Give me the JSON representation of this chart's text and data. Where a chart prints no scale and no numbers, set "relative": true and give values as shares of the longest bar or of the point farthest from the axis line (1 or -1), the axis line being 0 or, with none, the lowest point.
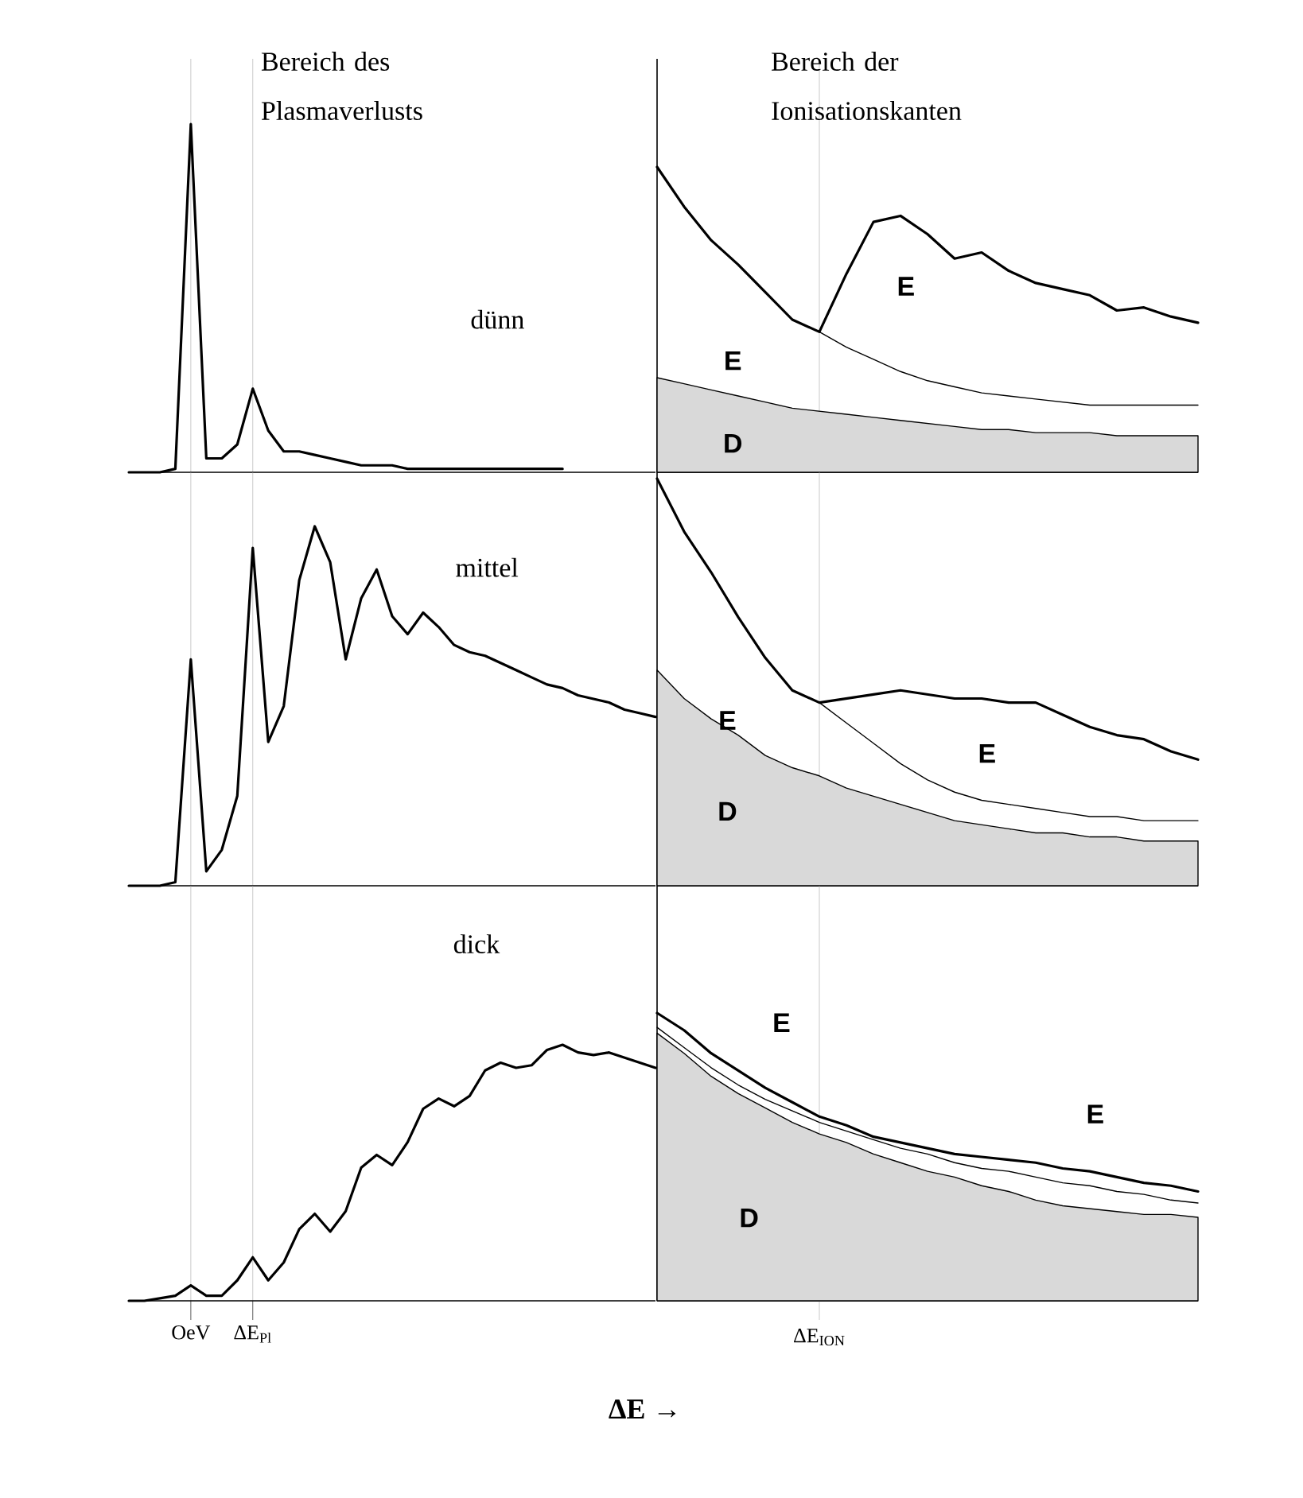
{
  "chart_data": [
    {
      "type": "line",
      "title": "Bereich des Plasmaverlusts",
      "relative": true,
      "grid": "x",
      "annotations": [
        "dünn"
      ],
      "categories": [
        null,
        null,
        null,
        null,
        null,
        null,
        null,
        null,
        null,
        null,
        null,
        null,
        null,
        null,
        null,
        null,
        null,
        null,
        null,
        null,
        null,
        null,
        null,
        null,
        null,
        null,
        null,
        null,
        null,
        null,
        null,
        null,
        null,
        null,
        null
      ],
      "series": [
        {
          "color": "#000000",
          "values": [
            0,
            0,
            0,
            0.01,
            1,
            0.04,
            0.04,
            0.08,
            0.24,
            0.12,
            0.06,
            0.06,
            0.05,
            0.04,
            0.03,
            0.02,
            0.02,
            0.02,
            0.01,
            0.01,
            0.01,
            0.01,
            0.01,
            0.01,
            0.01,
            0.01,
            0.01,
            0.01,
            0.01,
            null,
            null,
            null,
            null,
            null,
            null
          ]
        }
      ]
    },
    {
      "type": "line",
      "title": "Bereich der Ionisationskanten",
      "relative": true,
      "grid": "x",
      "annotations": [
        "E",
        "E",
        "D"
      ],
      "categories": [
        null,
        null,
        null,
        null,
        null,
        null,
        null,
        null,
        null,
        null,
        null,
        null,
        null,
        null,
        null,
        null,
        null,
        null,
        null,
        null,
        null
      ],
      "series": [
        {
          "type": "area",
          "color": "#d9d9d9",
          "values": [
            0.31,
            0.29,
            0.27,
            0.25,
            0.23,
            0.21,
            0.2,
            0.19,
            0.18,
            0.17,
            0.16,
            0.15,
            0.14,
            0.14,
            0.13,
            0.13,
            0.13,
            0.12,
            0.12,
            0.12,
            0.12
          ]
        },
        {
          "color": "#000000",
          "values": [
            1,
            0.87,
            0.76,
            0.68,
            0.59,
            0.5,
            0.46,
            0.41,
            0.37,
            0.33,
            0.3,
            0.28,
            0.26,
            0.25,
            0.24,
            0.23,
            0.22,
            0.22,
            0.22,
            0.22,
            0.22
          ]
        },
        {
          "color": "#000000",
          "values": [
            1,
            0.87,
            0.76,
            0.68,
            0.59,
            0.5,
            0.46,
            0.65,
            0.82,
            0.84,
            0.78,
            0.7,
            0.72,
            0.66,
            0.62,
            0.6,
            0.58,
            0.53,
            0.54,
            0.51,
            0.49
          ]
        }
      ]
    },
    {
      "type": "line",
      "relative": true,
      "grid": "x",
      "annotations": [
        "mittel"
      ],
      "categories": [
        null,
        null,
        null,
        null,
        null,
        null,
        null,
        null,
        null,
        null,
        null,
        null,
        null,
        null,
        null,
        null,
        null,
        null,
        null,
        null,
        null,
        null,
        null,
        null,
        null,
        null,
        null,
        null,
        null,
        null,
        null,
        null,
        null,
        null,
        null
      ],
      "series": [
        {
          "color": "#000000",
          "values": [
            0,
            0,
            0,
            0.01,
            0.63,
            0.04,
            0.1,
            0.25,
            0.94,
            0.4,
            0.5,
            0.85,
            1,
            0.9,
            0.63,
            0.8,
            0.88,
            0.75,
            0.7,
            0.76,
            0.72,
            0.67,
            0.65,
            0.64,
            0.62,
            0.6,
            0.58,
            0.56,
            0.55,
            0.53,
            0.52,
            0.51,
            0.49,
            0.48,
            0.47
          ]
        }
      ]
    },
    {
      "type": "line",
      "relative": true,
      "grid": "x",
      "annotations": [
        "E",
        "E",
        "D"
      ],
      "categories": [
        null,
        null,
        null,
        null,
        null,
        null,
        null,
        null,
        null,
        null,
        null,
        null,
        null,
        null,
        null,
        null,
        null,
        null,
        null,
        null,
        null
      ],
      "series": [
        {
          "type": "area",
          "color": "#d9d9d9",
          "values": [
            0.53,
            0.46,
            0.41,
            0.37,
            0.32,
            0.29,
            0.27,
            0.24,
            0.22,
            0.2,
            0.18,
            0.16,
            0.15,
            0.14,
            0.13,
            0.13,
            0.12,
            0.12,
            0.11,
            0.11,
            0.11
          ]
        },
        {
          "color": "#000000",
          "values": [
            1,
            0.87,
            0.77,
            0.66,
            0.56,
            0.48,
            0.45,
            0.4,
            0.35,
            0.3,
            0.26,
            0.23,
            0.21,
            0.2,
            0.19,
            0.18,
            0.17,
            0.17,
            0.16,
            0.16,
            0.16
          ]
        },
        {
          "color": "#000000",
          "values": [
            1,
            0.87,
            0.77,
            0.66,
            0.56,
            0.48,
            0.45,
            0.46,
            0.47,
            0.48,
            0.47,
            0.46,
            0.46,
            0.45,
            0.45,
            0.42,
            0.39,
            0.37,
            0.36,
            0.33,
            0.31
          ]
        }
      ]
    },
    {
      "type": "line",
      "relative": true,
      "grid": "x",
      "tick_labels": "x",
      "xlabel": "ΔE →",
      "annotations": [
        "dick"
      ],
      "categories": [
        null,
        null,
        null,
        null,
        "OeV",
        null,
        null,
        null,
        "ΔE$_{Pl}$",
        null,
        null,
        null,
        null,
        null,
        null,
        null,
        null,
        null,
        null,
        null,
        null,
        null,
        null,
        null,
        null,
        null,
        null,
        null,
        null,
        null,
        null,
        null,
        null,
        null,
        null
      ],
      "series": [
        {
          "color": "#000000",
          "values": [
            0,
            0,
            0.01,
            0.02,
            0.06,
            0.02,
            0.02,
            0.08,
            0.17,
            0.08,
            0.15,
            0.28,
            0.34,
            0.27,
            0.35,
            0.52,
            0.57,
            0.53,
            0.62,
            0.75,
            0.79,
            0.76,
            0.8,
            0.9,
            0.93,
            0.91,
            0.92,
            0.98,
            1,
            0.97,
            0.96,
            0.97,
            0.95,
            0.93,
            0.91
          ]
        }
      ]
    },
    {
      "type": "line",
      "relative": true,
      "grid": "x",
      "xlabel": "ΔE$_{ION}$",
      "annotations": [
        "E",
        "E",
        "D"
      ],
      "categories": [
        null,
        null,
        null,
        null,
        null,
        null,
        null,
        null,
        null,
        null,
        null,
        null,
        null,
        null,
        null,
        null,
        null,
        null,
        null,
        null,
        null
      ],
      "series": [
        {
          "type": "area",
          "color": "#d9d9d9",
          "values": [
            0.93,
            0.86,
            0.78,
            0.72,
            0.67,
            0.62,
            0.58,
            0.55,
            0.51,
            0.48,
            0.45,
            0.43,
            0.4,
            0.38,
            0.35,
            0.33,
            0.32,
            0.31,
            0.3,
            0.3,
            0.29
          ]
        },
        {
          "color": "#000000",
          "values": [
            0.95,
            0.88,
            0.81,
            0.75,
            0.7,
            0.66,
            0.62,
            0.59,
            0.56,
            0.53,
            0.51,
            0.48,
            0.46,
            0.45,
            0.43,
            0.41,
            0.4,
            0.38,
            0.37,
            0.35,
            0.34
          ]
        },
        {
          "color": "#000000",
          "values": [
            1,
            0.94,
            0.86,
            0.8,
            0.74,
            0.69,
            0.64,
            0.61,
            0.57,
            0.55,
            0.53,
            0.51,
            0.5,
            0.49,
            0.48,
            0.46,
            0.45,
            0.43,
            0.41,
            0.4,
            0.38
          ]
        }
      ]
    }
  ]
}
